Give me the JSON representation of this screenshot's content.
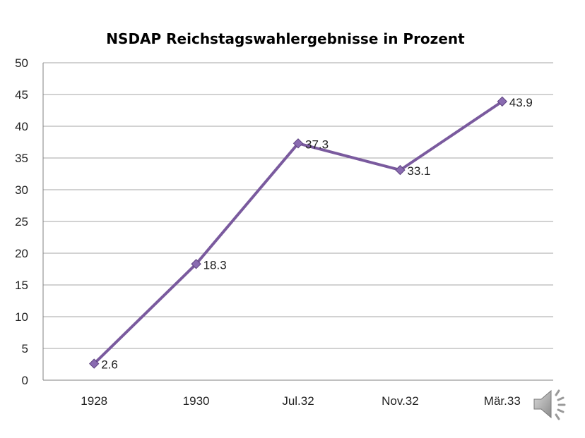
{
  "chart_data": {
    "type": "line",
    "title": "NSDAP Reichstagswahlergebnisse in Prozent",
    "xlabel": "",
    "ylabel": "",
    "categories": [
      "1928",
      "1930",
      "Jul.32",
      "Nov.32",
      "Mär.33"
    ],
    "series": [
      {
        "values": [
          2.6,
          18.3,
          37.3,
          33.1,
          43.9
        ],
        "data_labels": [
          "2.6",
          "18.3",
          "37.3",
          "33.1",
          "43.9"
        ]
      }
    ],
    "ylim": [
      0,
      50
    ],
    "yticks": [
      "0",
      "5",
      "10",
      "15",
      "20",
      "25",
      "30",
      "35",
      "40",
      "45",
      "50"
    ],
    "grid": true,
    "legend": "none",
    "colors": {
      "line": "#7a5a9e",
      "marker": "#8a6bb1",
      "marker_edge": "#5e4480"
    }
  },
  "icons": {
    "speaker": "speaker-icon"
  }
}
